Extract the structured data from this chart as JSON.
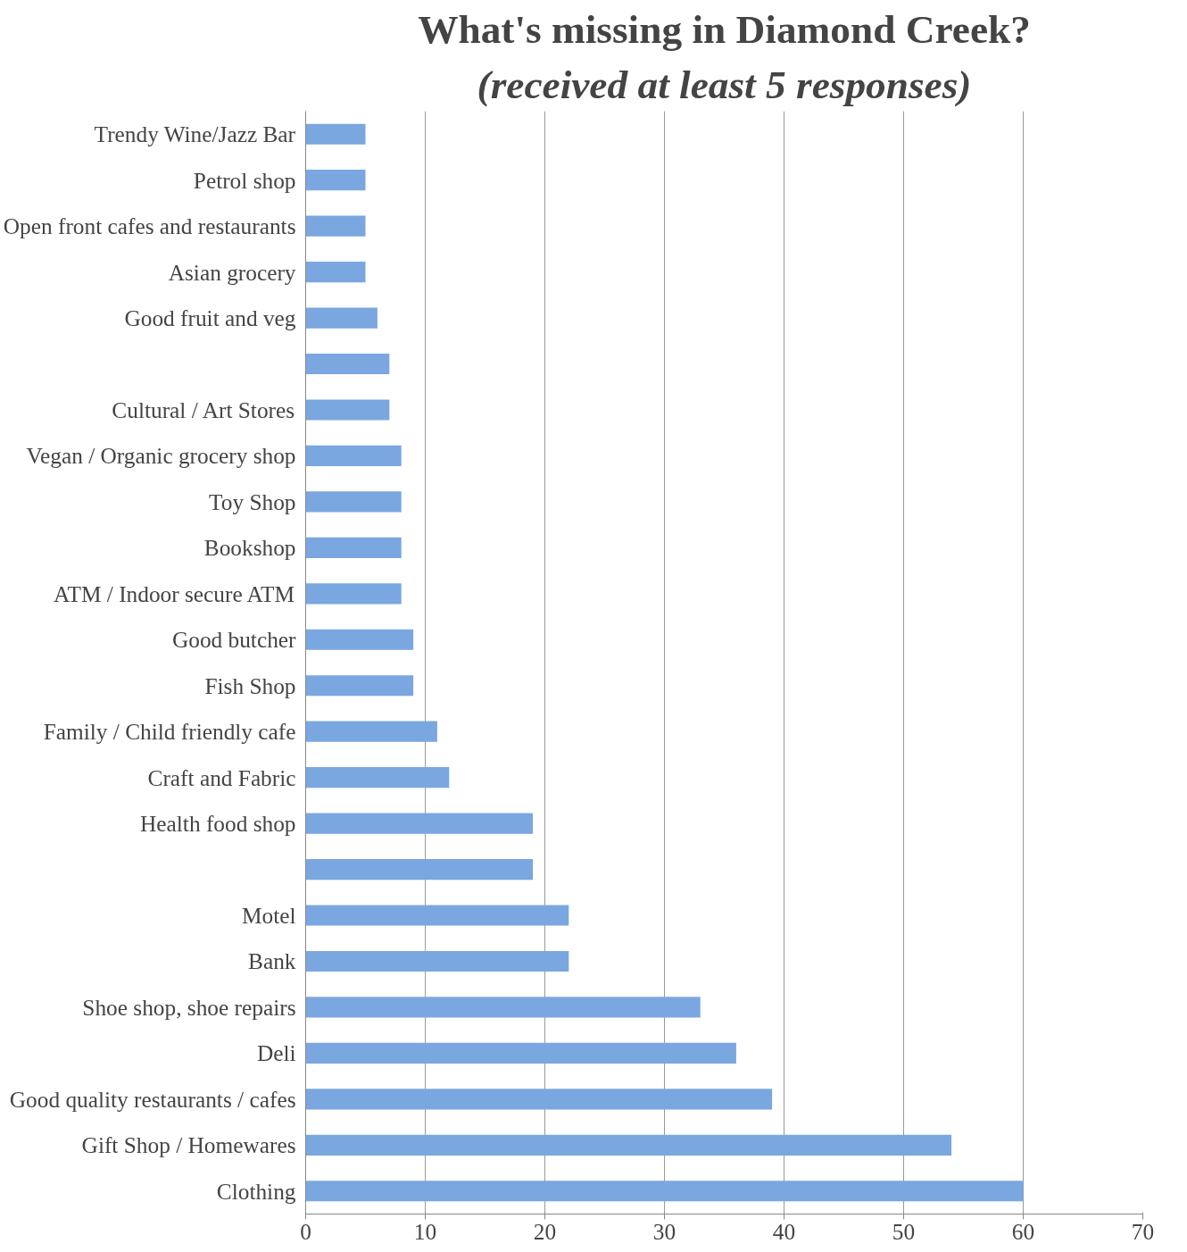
{
  "chart_data": {
    "type": "bar",
    "orientation": "horizontal",
    "title": "What's missing in Diamond Creek?",
    "subtitle": "(received at least 5 responses)",
    "categories": [
      "Trendy Wine/Jazz Bar",
      "Petrol shop",
      "Open front cafes and restaurants",
      "Asian grocery",
      "Good fruit and veg",
      null,
      "Cultural / Art Stores",
      "Vegan / Organic grocery shop",
      "Toy Shop",
      "Bookshop",
      "ATM / Indoor secure ATM",
      "Good butcher",
      "Fish Shop",
      "Family / Child friendly cafe",
      "Craft and Fabric",
      "Health food shop",
      null,
      "Motel",
      "Bank",
      "Shoe shop, shoe repairs",
      "Deli",
      "Good quality restaurants / cafes",
      "Gift Shop / Homewares",
      "Clothing"
    ],
    "values": [
      5,
      5,
      5,
      5,
      6,
      7,
      7,
      8,
      8,
      8,
      8,
      9,
      9,
      11,
      12,
      19,
      19,
      22,
      22,
      33,
      36,
      39,
      54,
      60
    ],
    "color": "#7aa7e0",
    "xlim": [
      0,
      70
    ],
    "xticks": [
      0,
      10,
      20,
      30,
      40,
      50,
      60,
      70
    ],
    "grid": "x"
  }
}
